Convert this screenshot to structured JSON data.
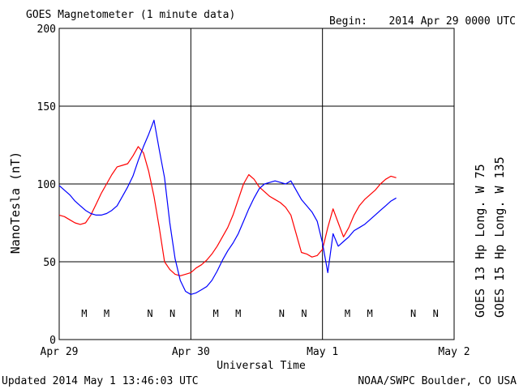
{
  "header": {
    "title": "GOES Magnetometer (1 minute data)",
    "begin_label": "Begin:",
    "begin_value": "2014 Apr 29 0000 UTC"
  },
  "footer": {
    "updated": "Updated 2014 May  1 13:46:03 UTC",
    "source": "NOAA/SWPC Boulder, CO USA"
  },
  "colors": {
    "goes13": "#ff0000",
    "goes15": "#0000ff",
    "grid": "#000000"
  },
  "chart_data": {
    "type": "line",
    "ylabel": "NanoTesla (nT)",
    "xlabel": "Universal Time",
    "ylim": [
      0,
      200
    ],
    "yticks": [
      0,
      50,
      100,
      150,
      200
    ],
    "xlim_days": [
      0,
      3
    ],
    "xticks": [
      {
        "day": 0,
        "label": "Apr 29"
      },
      {
        "day": 1,
        "label": "Apr 30"
      },
      {
        "day": 2,
        "label": "May 1"
      },
      {
        "day": 3,
        "label": "May 2"
      }
    ],
    "grid": true,
    "legend_placement": "right, vertical",
    "series": [
      {
        "name": "GOES 13 Hp  Long. W 75",
        "color": "#ff0000",
        "x": [
          0.0,
          0.04,
          0.08,
          0.12,
          0.16,
          0.2,
          0.24,
          0.28,
          0.32,
          0.36,
          0.4,
          0.44,
          0.48,
          0.52,
          0.56,
          0.6,
          0.64,
          0.68,
          0.72,
          0.76,
          0.8,
          0.84,
          0.88,
          0.92,
          0.96,
          1.0,
          1.04,
          1.08,
          1.12,
          1.16,
          1.2,
          1.24,
          1.28,
          1.32,
          1.36,
          1.4,
          1.44,
          1.48,
          1.52,
          1.56,
          1.6,
          1.64,
          1.68,
          1.72,
          1.76,
          1.8,
          1.84,
          1.88,
          1.92,
          1.96,
          2.0,
          2.04,
          2.08,
          2.12,
          2.16,
          2.2,
          2.24,
          2.28,
          2.32,
          2.36,
          2.4,
          2.44,
          2.48,
          2.52,
          2.56
        ],
        "y": [
          80,
          79,
          77,
          75,
          74,
          75,
          80,
          87,
          94,
          100,
          106,
          111,
          112,
          113,
          118,
          124,
          120,
          108,
          92,
          72,
          50,
          45,
          42,
          41,
          42,
          43,
          46,
          48,
          51,
          55,
          60,
          66,
          72,
          80,
          90,
          100,
          106,
          103,
          98,
          95,
          92,
          90,
          88,
          85,
          80,
          68,
          56,
          55,
          53,
          54,
          58,
          72,
          84,
          75,
          66,
          72,
          80,
          86,
          90,
          93,
          96,
          100,
          103,
          105,
          104
        ]
      },
      {
        "name": "GOES 15 Hp  Long. W 135",
        "color": "#0000ff",
        "x": [
          0.0,
          0.04,
          0.08,
          0.12,
          0.16,
          0.2,
          0.24,
          0.28,
          0.32,
          0.36,
          0.4,
          0.44,
          0.48,
          0.52,
          0.56,
          0.6,
          0.64,
          0.68,
          0.72,
          0.76,
          0.8,
          0.84,
          0.88,
          0.92,
          0.96,
          1.0,
          1.04,
          1.08,
          1.12,
          1.16,
          1.2,
          1.24,
          1.28,
          1.32,
          1.36,
          1.4,
          1.44,
          1.48,
          1.52,
          1.56,
          1.6,
          1.64,
          1.68,
          1.72,
          1.76,
          1.8,
          1.84,
          1.88,
          1.92,
          1.96,
          2.0,
          2.04,
          2.08,
          2.12,
          2.16,
          2.2,
          2.24,
          2.28,
          2.32,
          2.36,
          2.4,
          2.44,
          2.48,
          2.52,
          2.56
        ],
        "y": [
          99,
          96,
          93,
          89,
          86,
          83,
          81,
          80,
          80,
          81,
          83,
          86,
          92,
          98,
          105,
          115,
          124,
          132,
          141,
          122,
          104,
          75,
          52,
          38,
          31,
          29,
          30,
          32,
          34,
          38,
          44,
          51,
          57,
          62,
          68,
          76,
          84,
          91,
          97,
          100,
          101,
          102,
          101,
          100,
          102,
          96,
          90,
          86,
          82,
          76,
          62,
          43,
          68,
          60,
          63,
          66,
          70,
          72,
          74,
          77,
          80,
          83,
          86,
          89,
          91
        ]
      }
    ],
    "markers": [
      {
        "letter": "M",
        "day": 0.19,
        "color": "#ff0000"
      },
      {
        "letter": "M",
        "day": 0.36,
        "color": "#0000ff"
      },
      {
        "letter": "N",
        "day": 0.69,
        "color": "#ff0000"
      },
      {
        "letter": "N",
        "day": 0.86,
        "color": "#0000ff"
      },
      {
        "letter": "M",
        "day": 1.19,
        "color": "#ff0000"
      },
      {
        "letter": "M",
        "day": 1.36,
        "color": "#0000ff"
      },
      {
        "letter": "N",
        "day": 1.69,
        "color": "#ff0000"
      },
      {
        "letter": "N",
        "day": 1.86,
        "color": "#0000ff"
      },
      {
        "letter": "M",
        "day": 2.19,
        "color": "#ff0000"
      },
      {
        "letter": "M",
        "day": 2.36,
        "color": "#0000ff"
      },
      {
        "letter": "N",
        "day": 2.69,
        "color": "#ff0000"
      },
      {
        "letter": "N",
        "day": 2.86,
        "color": "#0000ff"
      }
    ]
  }
}
